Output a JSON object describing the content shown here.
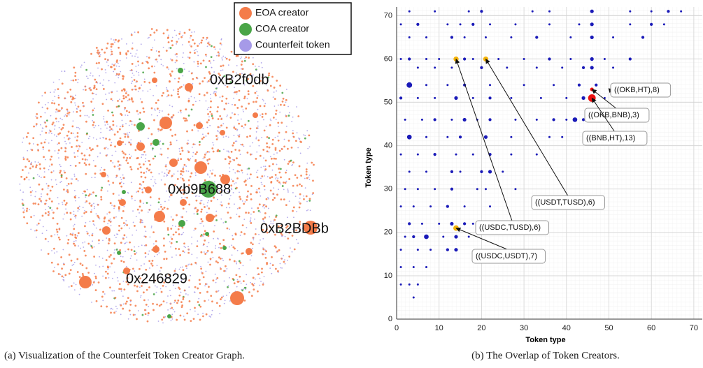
{
  "chart_data": [
    {
      "type": "network",
      "caption": "(a) Visualization of the Counterfeit Token Creator Graph.",
      "legend": [
        {
          "name": "EOA creator",
          "color": "#f47c4a"
        },
        {
          "name": "COA creator",
          "color": "#4aa548"
        },
        {
          "name": "Counterfeit token",
          "color": "#a69ae8"
        }
      ],
      "node_labels": [
        "0xB2f0db",
        "0xb9B688",
        "0xB2BDBb",
        "0x246829"
      ]
    },
    {
      "type": "scatter",
      "caption": "(b) The Overlap of Token Creators.",
      "xlabel": "Token type",
      "ylabel": "Token type",
      "xlim": [
        0,
        72
      ],
      "ylim": [
        0,
        72
      ],
      "xticks": [
        0,
        10,
        20,
        30,
        40,
        50,
        60,
        70
      ],
      "yticks": [
        0,
        10,
        20,
        30,
        40,
        50,
        60,
        70
      ],
      "grid": true,
      "series": [
        {
          "color": "#1a1ab8",
          "x": [
            3,
            9,
            17,
            20,
            32,
            36,
            46,
            55,
            60,
            64,
            67,
            1,
            5,
            12,
            15,
            18,
            22,
            28,
            36,
            43,
            46,
            55,
            60,
            63,
            3,
            7,
            13,
            16,
            21,
            27,
            33,
            41,
            46,
            51,
            58,
            1,
            3,
            7,
            10,
            16,
            18,
            24,
            30,
            36,
            41,
            46,
            49,
            55,
            5,
            9,
            13,
            20,
            26,
            33,
            39,
            44,
            46,
            51,
            3,
            7,
            12,
            16,
            22,
            30,
            37,
            43,
            47,
            1,
            5,
            9,
            14,
            18,
            22,
            27,
            34,
            40,
            44,
            49,
            2,
            6,
            9,
            13,
            16,
            19,
            22,
            28,
            33,
            37,
            40,
            42,
            44,
            3,
            7,
            12,
            15,
            21,
            27,
            36,
            39,
            1,
            5,
            9,
            14,
            18,
            22,
            27,
            33,
            3,
            7,
            13,
            15,
            20,
            22,
            25,
            2,
            5,
            9,
            13,
            19,
            21,
            28,
            1,
            4,
            8,
            12,
            16,
            22,
            3,
            6,
            10,
            13,
            16,
            18,
            20,
            2,
            4,
            7,
            11,
            14,
            17,
            1,
            5,
            8,
            12,
            14,
            1,
            4,
            7,
            1,
            3,
            5,
            4
          ],
          "y": [
            71,
            71,
            71,
            71,
            71,
            71,
            71,
            71,
            71,
            71,
            71,
            68,
            68,
            68,
            68,
            68,
            68,
            68,
            68,
            68,
            68,
            68,
            68,
            68,
            65,
            65,
            65,
            65,
            65,
            65,
            65,
            65,
            65,
            65,
            65,
            60,
            60,
            60,
            60,
            60,
            60,
            60,
            60,
            60,
            60,
            60,
            60,
            60,
            58,
            58,
            58,
            58,
            58,
            58,
            58,
            58,
            58,
            58,
            54,
            54,
            54,
            54,
            54,
            54,
            54,
            54,
            54,
            51,
            51,
            51,
            51,
            51,
            51,
            51,
            51,
            51,
            51,
            51,
            46,
            46,
            46,
            46,
            46,
            46,
            46,
            46,
            46,
            46,
            46,
            46,
            46,
            42,
            42,
            42,
            42,
            42,
            42,
            42,
            42,
            38,
            38,
            38,
            38,
            38,
            38,
            38,
            38,
            34,
            34,
            34,
            34,
            34,
            34,
            34,
            30,
            30,
            30,
            30,
            30,
            30,
            30,
            26,
            26,
            26,
            26,
            26,
            26,
            22,
            22,
            22,
            22,
            22,
            22,
            22,
            19,
            19,
            19,
            19,
            19,
            19,
            16,
            16,
            16,
            16,
            16,
            12,
            12,
            12,
            8,
            8,
            8,
            5
          ],
          "sizes": [
            1,
            1,
            1,
            2,
            1,
            1,
            3,
            1,
            1,
            2,
            1,
            1,
            2,
            1,
            1,
            2,
            1,
            1,
            1,
            1,
            3,
            1,
            2,
            1,
            1,
            1,
            2,
            1,
            1,
            1,
            2,
            1,
            3,
            1,
            2,
            1,
            2,
            1,
            1,
            2,
            1,
            1,
            1,
            2,
            1,
            3,
            1,
            2,
            1,
            1,
            1,
            2,
            1,
            1,
            1,
            2,
            3,
            1,
            7,
            1,
            1,
            2,
            1,
            1,
            1,
            2,
            2,
            2,
            1,
            1,
            3,
            1,
            2,
            1,
            1,
            1,
            3,
            1,
            1,
            1,
            2,
            1,
            3,
            1,
            2,
            1,
            1,
            2,
            1,
            5,
            2,
            5,
            1,
            1,
            2,
            3,
            1,
            1,
            1,
            1,
            1,
            2,
            1,
            1,
            2,
            1,
            1,
            1,
            1,
            2,
            1,
            2,
            3,
            1,
            1,
            1,
            1,
            2,
            1,
            1,
            1,
            1,
            1,
            1,
            2,
            1,
            1,
            2,
            1,
            1,
            3,
            2,
            1,
            1,
            1,
            2,
            5,
            1,
            3,
            1,
            1,
            1,
            1,
            2,
            3,
            1,
            1,
            1,
            1,
            1,
            1,
            1
          ],
          "shading": "dense"
        },
        {
          "color": "#f5b40a",
          "x": [
            14,
            21,
            14
          ],
          "y": [
            60,
            60,
            21
          ],
          "sizes": [
            6,
            6,
            7
          ]
        },
        {
          "color": "#ee1111",
          "x": [
            51,
            46,
            46
          ],
          "y": [
            53,
            53,
            51
          ],
          "sizes": [
            8,
            3,
            13
          ]
        }
      ],
      "annotations": [
        {
          "text": "((OKB,HT),8)",
          "x": 51,
          "y": 53
        },
        {
          "text": "((OKB,BNB),3)",
          "x": 46,
          "y": 53
        },
        {
          "text": "((BNB,HT),13)",
          "x": 46,
          "y": 51
        },
        {
          "text": "((USDT,TUSD),6)",
          "x": 21,
          "y": 60
        },
        {
          "text": "((USDC,TUSD),6)",
          "x": 14,
          "y": 60
        },
        {
          "text": "((USDC,USDT),7)",
          "x": 14,
          "y": 21
        }
      ]
    }
  ]
}
